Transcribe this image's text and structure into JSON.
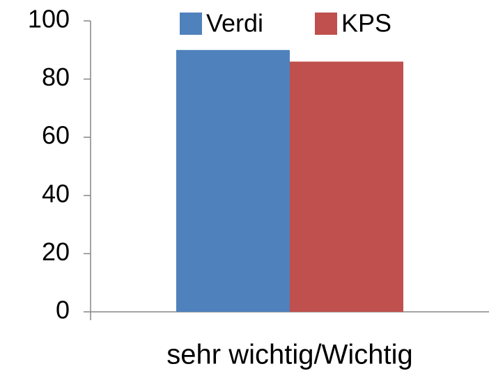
{
  "chart_data": {
    "type": "bar",
    "categories": [
      "sehr wichtig/Wichtig"
    ],
    "series": [
      {
        "name": "Verdi",
        "color": "#4f81bd",
        "values": [
          90
        ]
      },
      {
        "name": "KPS",
        "color": "#c0504d",
        "values": [
          86
        ]
      }
    ],
    "ylim": [
      0,
      100
    ],
    "yticks": [
      0,
      20,
      40,
      60,
      80,
      100
    ],
    "grid": false,
    "legend": "top"
  }
}
